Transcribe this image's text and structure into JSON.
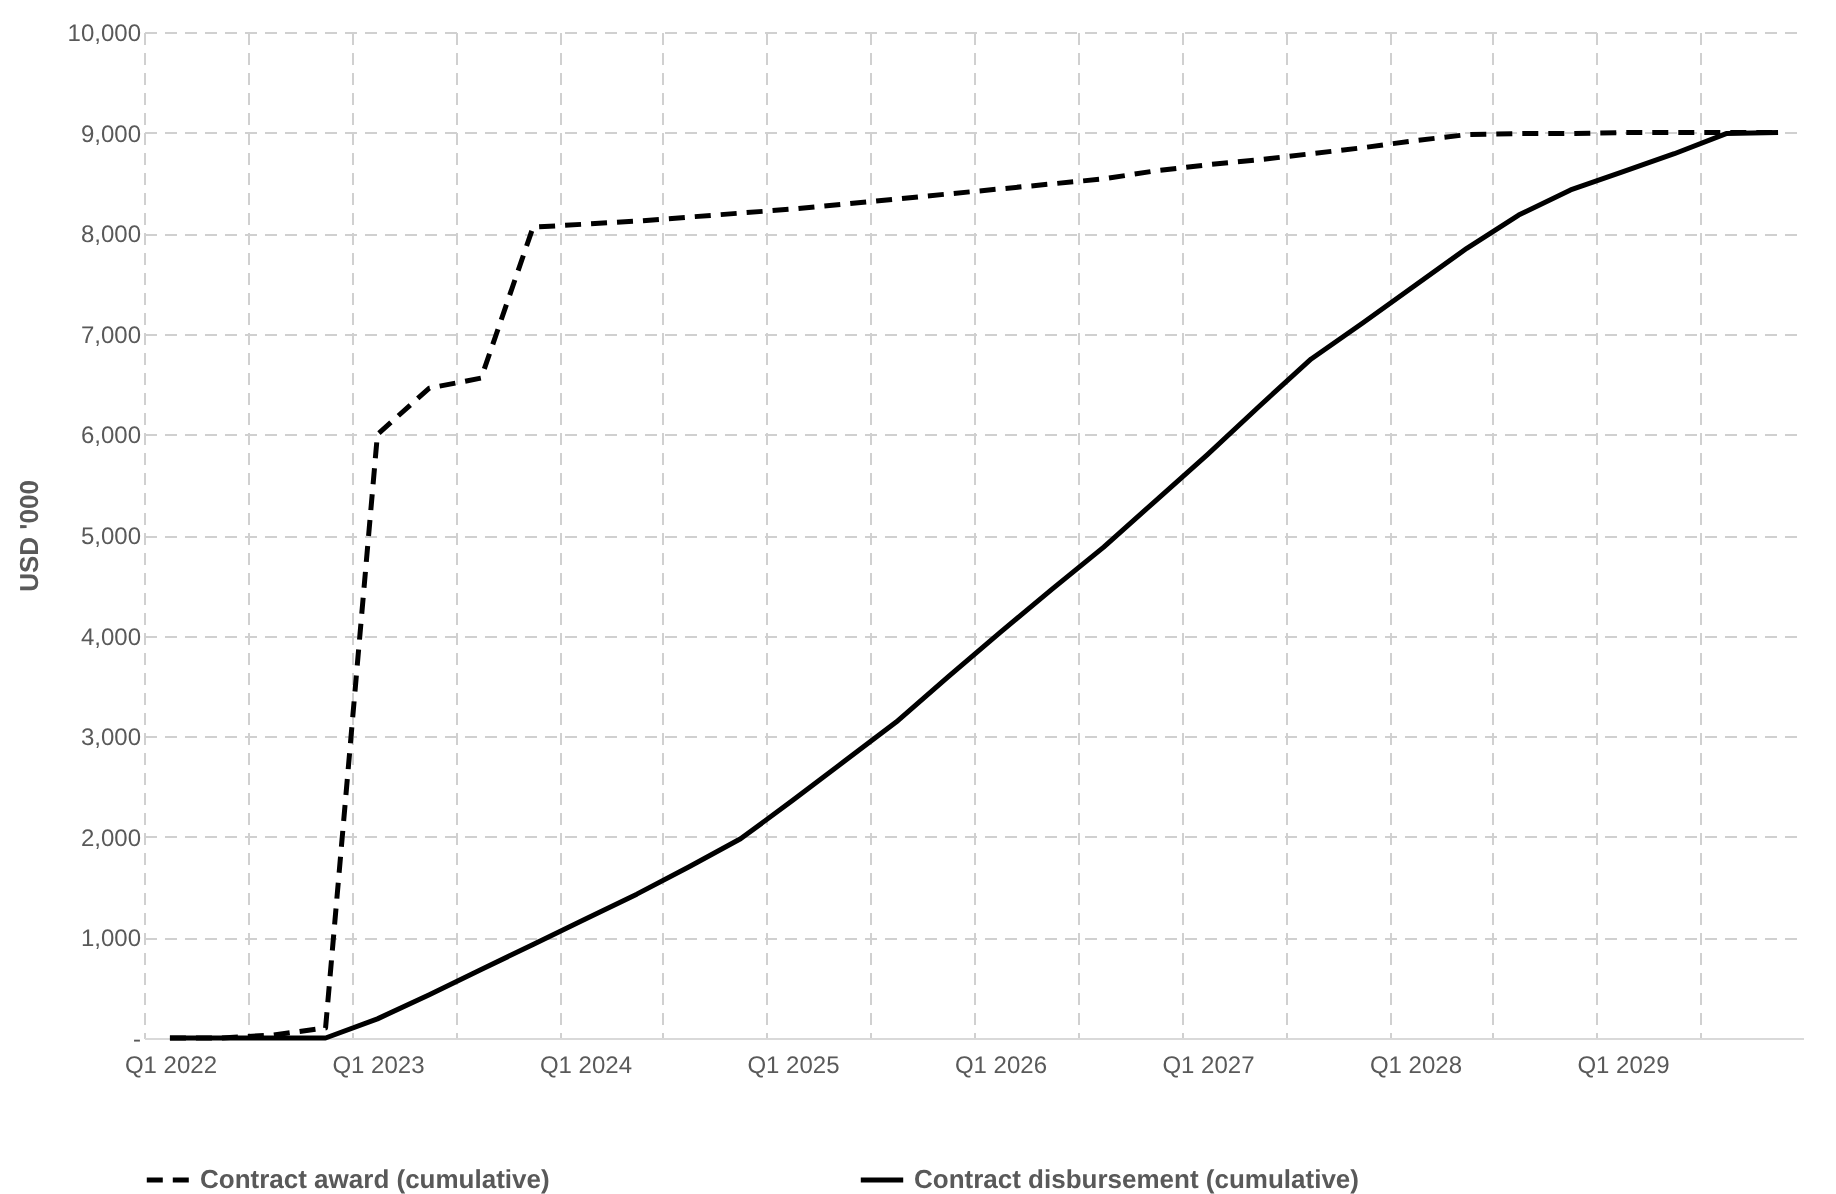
{
  "chart_data": {
    "type": "line",
    "ylabel": "USD '000",
    "categories": [
      "Q1 2022",
      null,
      null,
      null,
      "Q1 2023",
      null,
      null,
      null,
      "Q1 2024",
      null,
      null,
      null,
      "Q1 2025",
      null,
      null,
      null,
      "Q1 2026",
      null,
      null,
      null,
      "Q1 2027",
      null,
      null,
      null,
      "Q1 2028",
      null,
      null,
      null,
      "Q1 2029",
      null,
      null,
      null
    ],
    "ylim": [
      0,
      10000
    ],
    "yticks": [
      {
        "value": 0,
        "label": "-"
      },
      {
        "value": 1000,
        "label": "1,000"
      },
      {
        "value": 2000,
        "label": "2,000"
      },
      {
        "value": 3000,
        "label": "3,000"
      },
      {
        "value": 4000,
        "label": "4,000"
      },
      {
        "value": 5000,
        "label": "5,000"
      },
      {
        "value": 6000,
        "label": "6,000"
      },
      {
        "value": 7000,
        "label": "7,000"
      },
      {
        "value": 8000,
        "label": "8,000"
      },
      {
        "value": 9000,
        "label": "9,000"
      },
      {
        "value": 10000,
        "label": "10,000"
      }
    ],
    "grid": true,
    "legend": "bottom",
    "marker": "none",
    "series": [
      {
        "name": "Contract award (cumulative)",
        "color": "#000000",
        "line_style": "dashed",
        "values": [
          0,
          0,
          30,
          100,
          6000,
          6460,
          6560,
          8060,
          8090,
          8120,
          8160,
          8200,
          8240,
          8290,
          8340,
          8390,
          8440,
          8490,
          8540,
          8620,
          8680,
          8730,
          8790,
          8850,
          8920,
          8980,
          8990,
          8990,
          9000,
          9000,
          9000,
          9000
        ]
      },
      {
        "name": "Contract disbursement (cumulative)",
        "color": "#000000",
        "line_style": "solid",
        "values": [
          0,
          0,
          0,
          0,
          190,
          430,
          680,
          930,
          1180,
          1430,
          1700,
          1980,
          2360,
          2750,
          3140,
          3590,
          4030,
          4460,
          4880,
          5340,
          5800,
          6280,
          6750,
          7110,
          7480,
          7850,
          8180,
          8430,
          8610,
          8790,
          8990,
          9000
        ]
      }
    ]
  }
}
